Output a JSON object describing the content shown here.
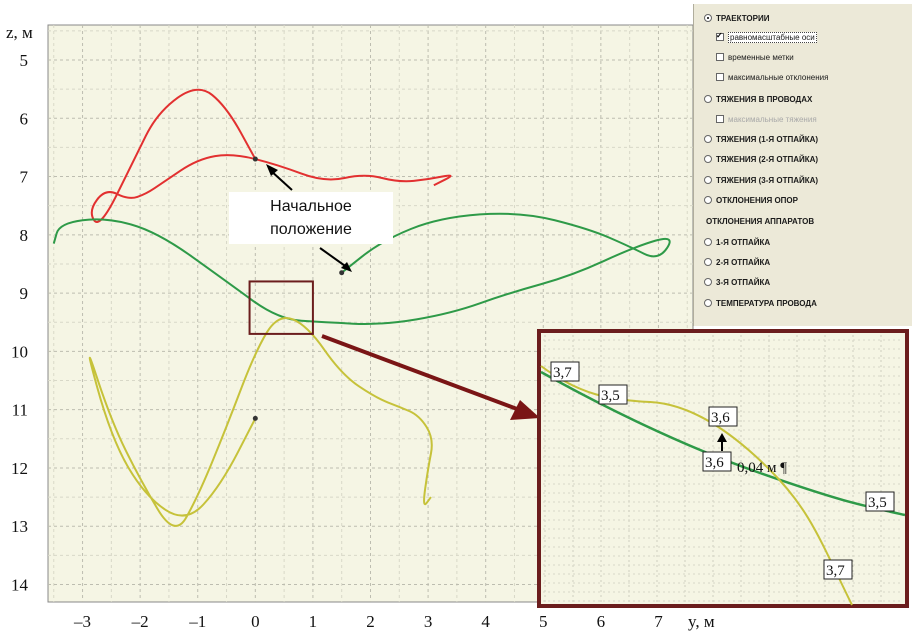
{
  "chart_data": {
    "type": "line",
    "xlabel": "y, м",
    "ylabel": "z, м",
    "xlim": [
      -3.6,
      7.6
    ],
    "ylim": [
      14.3,
      4.4
    ],
    "x_ticks": [
      "–3",
      "–2",
      "–1",
      "0",
      "1",
      "2",
      "3",
      "4",
      "5",
      "6",
      "7"
    ],
    "y_ticks": [
      "5",
      "6",
      "7",
      "8",
      "9",
      "10",
      "11",
      "12",
      "13",
      "14"
    ],
    "grid": true,
    "series": [
      {
        "color": "#e23030",
        "points": [
          [
            0,
            6.7
          ],
          [
            -0.5,
            5.8
          ],
          [
            -1,
            5.4
          ],
          [
            -1.7,
            5.9
          ],
          [
            -2.1,
            6.7
          ],
          [
            -2.7,
            7.9
          ],
          [
            -2.9,
            7.6
          ],
          [
            -2.6,
            7.2
          ],
          [
            -2.2,
            7.4
          ],
          [
            -1.9,
            7.3
          ],
          [
            -1.6,
            7.1
          ],
          [
            -1,
            6.7
          ],
          [
            -0.4,
            6.6
          ],
          [
            0.4,
            6.8
          ],
          [
            1.2,
            7.1
          ],
          [
            1.9,
            6.95
          ],
          [
            2.5,
            7.1
          ],
          [
            3,
            7.05
          ],
          [
            3.5,
            6.95
          ],
          [
            3.1,
            7.15
          ]
        ]
      },
      {
        "color": "#2e9a48",
        "points": [
          [
            1.5,
            8.65
          ],
          [
            2.2,
            8.1
          ],
          [
            3.2,
            7.7
          ],
          [
            4.6,
            7.6
          ],
          [
            5.8,
            7.9
          ],
          [
            6.5,
            8.2
          ],
          [
            7,
            8.45
          ],
          [
            7.3,
            8.0
          ],
          [
            6.6,
            8.2
          ],
          [
            5.5,
            8.7
          ],
          [
            4.4,
            9.0
          ],
          [
            3.4,
            9.35
          ],
          [
            2.2,
            9.55
          ],
          [
            1.2,
            9.5
          ],
          [
            0.4,
            9.45
          ],
          [
            -0.5,
            8.8
          ],
          [
            -1.7,
            7.95
          ],
          [
            -2.6,
            7.7
          ],
          [
            -3.4,
            7.8
          ],
          [
            -3.5,
            8.15
          ]
        ]
      },
      {
        "color": "#c6c23a",
        "points": [
          [
            0,
            11.15
          ],
          [
            -0.6,
            12.3
          ],
          [
            -1.2,
            12.95
          ],
          [
            -1.9,
            12.5
          ],
          [
            -2.5,
            11.5
          ],
          [
            -3.0,
            9.7
          ],
          [
            -2.5,
            11.2
          ],
          [
            -2.0,
            12.2
          ],
          [
            -1.4,
            13.2
          ],
          [
            -1.0,
            12.5
          ],
          [
            -0.5,
            11.3
          ],
          [
            0,
            10.0
          ],
          [
            0.4,
            9.35
          ],
          [
            0.9,
            9.55
          ],
          [
            1.5,
            10.4
          ],
          [
            2.1,
            10.8
          ],
          [
            2.5,
            10.95
          ],
          [
            2.85,
            11.1
          ],
          [
            3.1,
            11.5
          ],
          [
            3.0,
            12.0
          ],
          [
            2.9,
            12.7
          ],
          [
            3.05,
            12.5
          ]
        ]
      }
    ],
    "start_point_label": "Начальное положение",
    "inset": {
      "region": {
        "y": [
          -0.1,
          1.0
        ],
        "z": [
          8.8,
          9.7
        ]
      },
      "labels": [
        "3,7",
        "3,5",
        "3,6",
        "3,6",
        "0,04 м ¶",
        "3,5",
        "3,7"
      ]
    }
  },
  "panel": {
    "items": [
      {
        "label": "ТРАЕКТОРИИ",
        "kind": "radio",
        "checked": true
      },
      {
        "label": "равномасштабные оси",
        "kind": "checkbox",
        "checked": true
      },
      {
        "label": "временные метки",
        "kind": "checkbox",
        "checked": false
      },
      {
        "label": "максимальные отклонения",
        "kind": "checkbox",
        "checked": false
      },
      {
        "label": "ТЯЖЕНИЯ В ПРОВОДАХ",
        "kind": "radio",
        "checked": false
      },
      {
        "label": "максимальные тяжения",
        "kind": "checkbox",
        "checked": false,
        "disabled": true
      },
      {
        "label": "ТЯЖЕНИЯ (1-Я ОТПАЙКА)",
        "kind": "radio",
        "checked": false
      },
      {
        "label": "ТЯЖЕНИЯ (2-Я ОТПАЙКА)",
        "kind": "radio",
        "checked": false
      },
      {
        "label": "ТЯЖЕНИЯ (3-Я ОТПАЙКА)",
        "kind": "radio",
        "checked": false
      },
      {
        "label": "ОТКЛОНЕНИЯ ОПОР",
        "kind": "radio",
        "checked": false
      },
      {
        "label": "ОТКЛОНЕНИЯ АППАРАТОВ",
        "kind": "label"
      },
      {
        "label": "1-Я ОТПАЙКА",
        "kind": "radio",
        "checked": false
      },
      {
        "label": "2-Я ОТПАЙКА",
        "kind": "radio",
        "checked": false
      },
      {
        "label": "3-Я ОТПАЙКА",
        "kind": "radio",
        "checked": false
      },
      {
        "label": "ТЕМПЕРАТУРА ПРОВОДА",
        "kind": "radio",
        "checked": false
      }
    ]
  }
}
